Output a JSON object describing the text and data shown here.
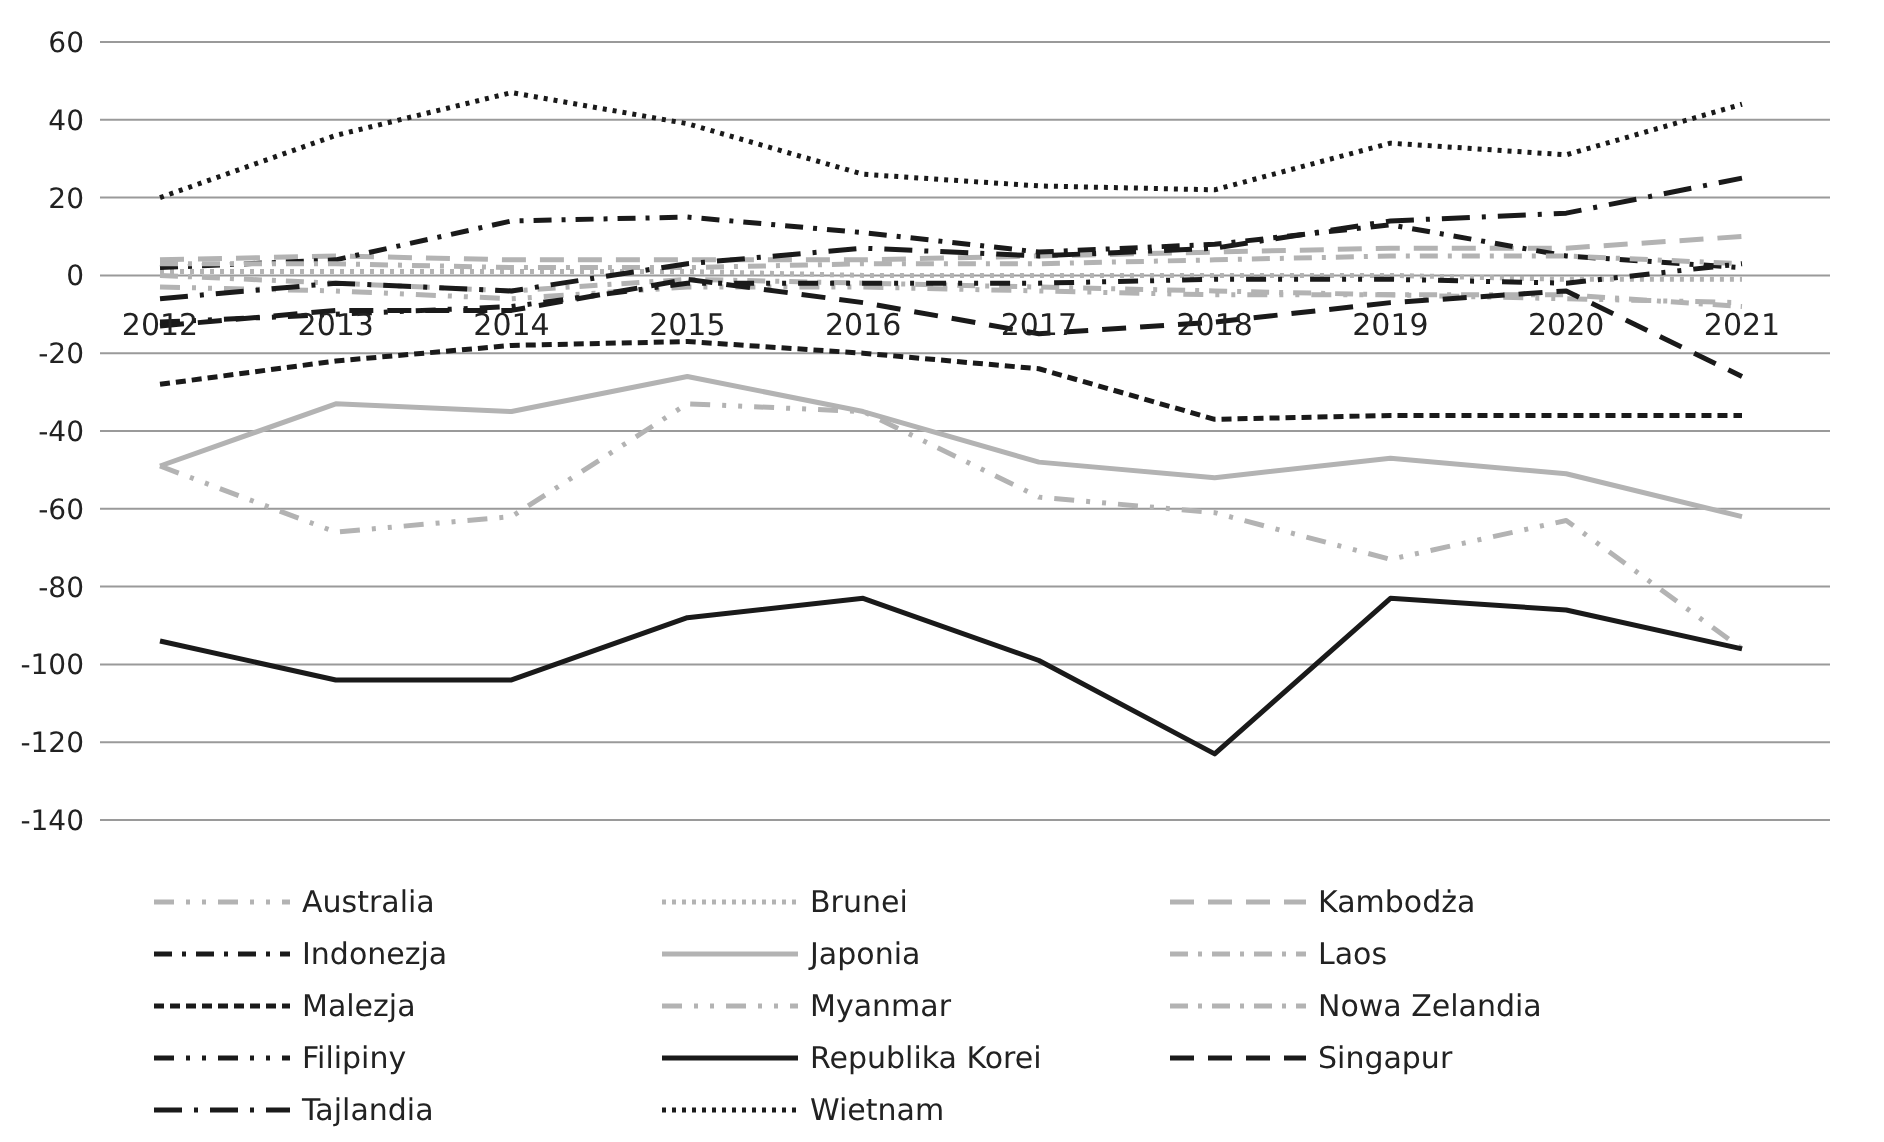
{
  "chart_data": {
    "type": "line",
    "categories": [
      "2012",
      "2013",
      "2014",
      "2015",
      "2016",
      "2017",
      "2018",
      "2019",
      "2020",
      "2021"
    ],
    "series": [
      {
        "name": "Australia",
        "color": "#b3b3b3",
        "line_style": "dashdotdot",
        "values": [
          -3,
          -4,
          -6,
          -3,
          -3,
          -4,
          -5,
          -5,
          -6,
          -7
        ]
      },
      {
        "name": "Brunei",
        "color": "#b3b3b3",
        "line_style": "dotted",
        "values": [
          1,
          1,
          1,
          1,
          0,
          0,
          0,
          0,
          -1,
          -1
        ]
      },
      {
        "name": "Kambodża",
        "color": "#b3b3b3",
        "line_style": "longdash",
        "values": [
          4,
          5,
          4,
          4,
          4,
          5,
          6,
          7,
          7,
          10
        ]
      },
      {
        "name": "Indonezja",
        "color": "#1a1a1a",
        "line_style": "dashdot",
        "values": [
          2,
          4,
          14,
          15,
          11,
          6,
          8,
          13,
          5,
          2
        ]
      },
      {
        "name": "Japonia",
        "color": "#b3b3b3",
        "line_style": "solid",
        "values": [
          -49,
          -33,
          -35,
          -26,
          -35,
          -48,
          -52,
          -47,
          -51,
          -62
        ]
      },
      {
        "name": "Laos",
        "color": "#b3b3b3",
        "line_style": "dashdot",
        "values": [
          3,
          3,
          2,
          2,
          3,
          3,
          4,
          5,
          5,
          3
        ]
      },
      {
        "name": "Malezja",
        "color": "#1a1a1a",
        "line_style": "dashed",
        "values": [
          -28,
          -22,
          -18,
          -17,
          -20,
          -24,
          -37,
          -36,
          -36,
          -36
        ]
      },
      {
        "name": "Myanmar",
        "color": "#b3b3b3",
        "line_style": "dashdotdot",
        "values": [
          -49,
          -66,
          -62,
          -33,
          -35,
          -57,
          -61,
          -73,
          -63,
          -96
        ]
      },
      {
        "name": "Nowa Zelandia",
        "color": "#b3b3b3",
        "line_style": "dashdot",
        "values": [
          0,
          -2,
          -4,
          -1,
          -2,
          -3,
          -4,
          -5,
          -5,
          -8
        ]
      },
      {
        "name": "Filipiny",
        "color": "#1a1a1a",
        "line_style": "dashdotdot",
        "values": [
          -12,
          -10,
          -8,
          -2,
          -2,
          -2,
          -1,
          -1,
          -2,
          3
        ]
      },
      {
        "name": "Republika Korei",
        "color": "#1a1a1a",
        "line_style": "solid",
        "values": [
          -94,
          -104,
          -104,
          -88,
          -83,
          -99,
          -123,
          -83,
          -86,
          -96
        ]
      },
      {
        "name": "Singapur",
        "color": "#1a1a1a",
        "line_style": "longdash",
        "values": [
          -13,
          -9,
          -9,
          -1,
          -7,
          -15,
          -12,
          -7,
          -4,
          -26
        ]
      },
      {
        "name": "Tajlandia",
        "color": "#1a1a1a",
        "line_style": "longdashdot",
        "values": [
          -6,
          -2,
          -4,
          3,
          7,
          5,
          7,
          14,
          16,
          25
        ]
      },
      {
        "name": "Wietnam",
        "color": "#1a1a1a",
        "line_style": "dotted",
        "values": [
          20,
          36,
          47,
          39,
          26,
          23,
          22,
          34,
          31,
          44
        ]
      }
    ],
    "ylim": [
      -140,
      60
    ],
    "yticks": [
      -140,
      -120,
      -100,
      -80,
      -60,
      -40,
      -20,
      0,
      20,
      40,
      60
    ],
    "grid": "y",
    "legend": "bottom"
  }
}
